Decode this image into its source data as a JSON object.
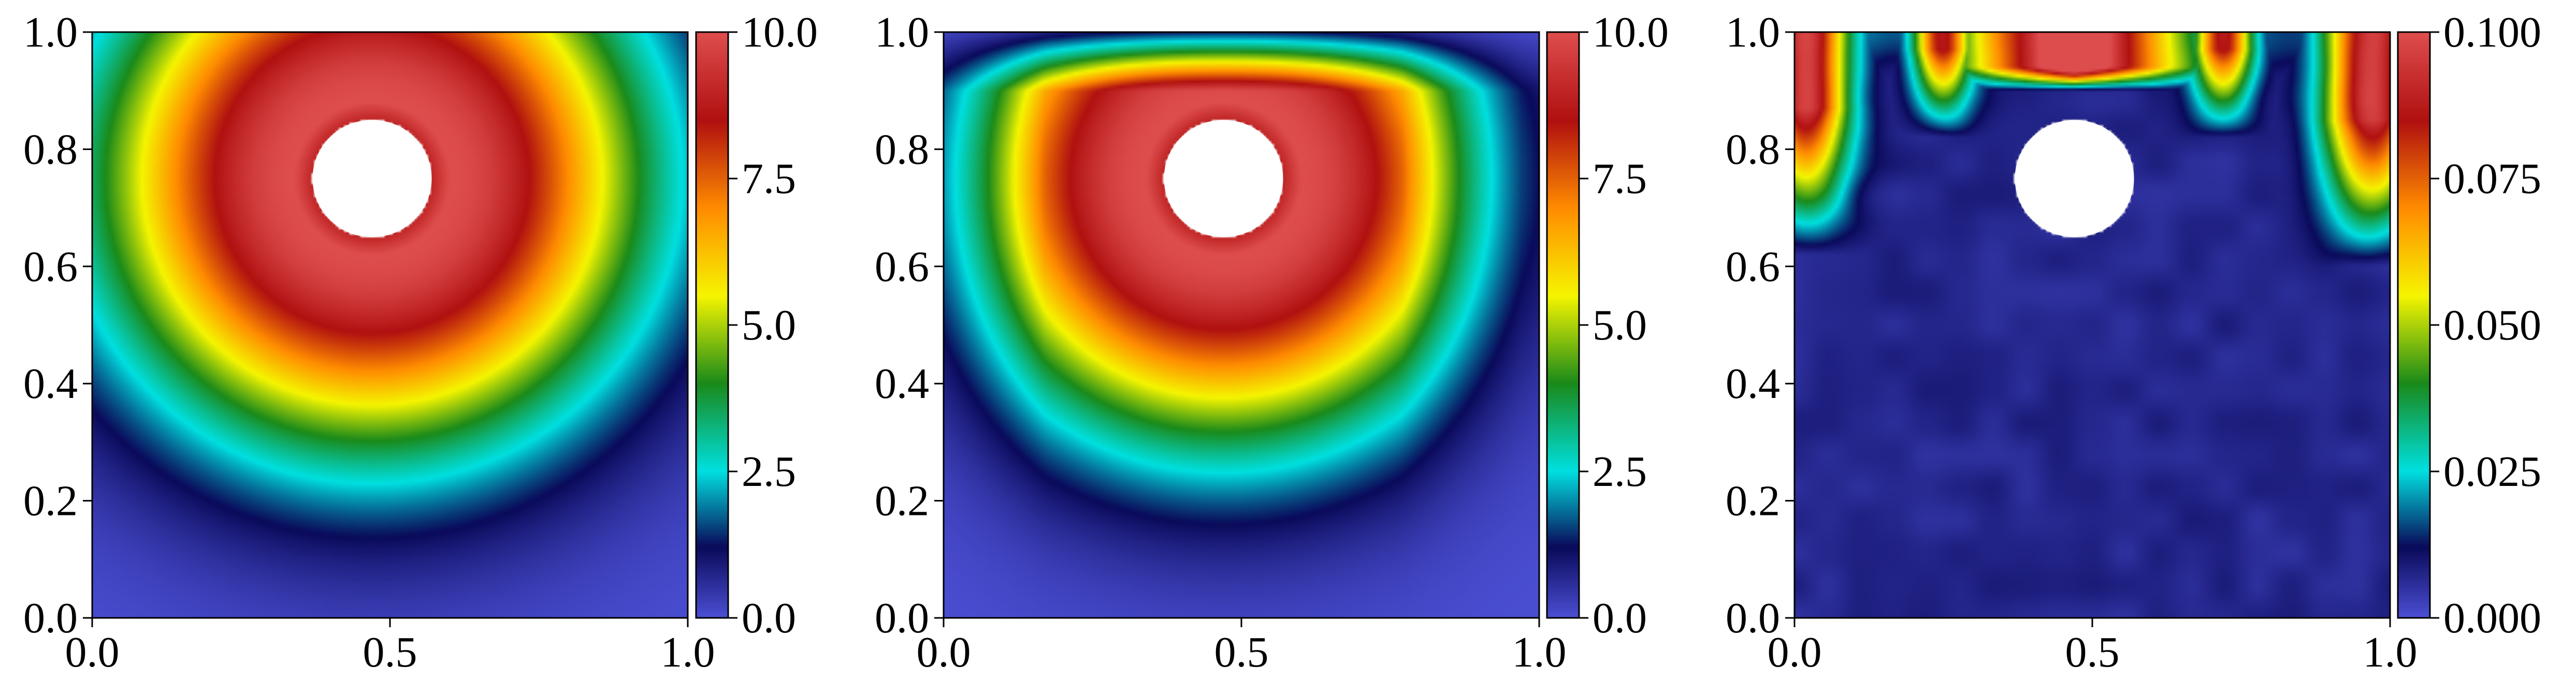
{
  "chart_data": [
    {
      "type": "heatmap",
      "panel": "left",
      "field": "ring",
      "center": [
        0.47,
        0.75
      ],
      "hole_radius": 0.1,
      "peak_radius": 0.13,
      "decay_width": 0.42,
      "top_fade": 0,
      "xlim": [
        0.0,
        1.0
      ],
      "ylim": [
        0.0,
        1.0
      ],
      "x_ticks": [
        "0.0",
        "0.5",
        "1.0"
      ],
      "y_ticks": [
        "0.0",
        "0.2",
        "0.4",
        "0.6",
        "0.8",
        "1.0"
      ],
      "colorbar": {
        "range": [
          0.0,
          10.0
        ],
        "ticks": [
          "0.0",
          "2.5",
          "5.0",
          "7.5",
          "10.0"
        ]
      }
    },
    {
      "type": "heatmap",
      "panel": "middle",
      "field": "ring",
      "center": [
        0.47,
        0.75
      ],
      "hole_radius": 0.1,
      "peak_radius": 0.13,
      "decay_width": 0.4,
      "top_fade": 1,
      "xlim": [
        0.0,
        1.0
      ],
      "ylim": [
        0.0,
        1.0
      ],
      "x_ticks": [
        "0.0",
        "0.5",
        "1.0"
      ],
      "y_ticks": [
        "0.0",
        "0.2",
        "0.4",
        "0.6",
        "0.8",
        "1.0"
      ],
      "colorbar": {
        "range": [
          0.0,
          10.0
        ],
        "ticks": [
          "0.0",
          "2.5",
          "5.0",
          "7.5",
          "10.0"
        ]
      }
    },
    {
      "type": "heatmap",
      "panel": "right",
      "field": "error",
      "center": [
        0.47,
        0.75
      ],
      "hole_radius": 0.1,
      "xlim": [
        0.0,
        1.0
      ],
      "ylim": [
        0.0,
        1.0
      ],
      "x_ticks": [
        "0.0",
        "0.5",
        "1.0"
      ],
      "y_ticks": [
        "0.0",
        "0.2",
        "0.4",
        "0.6",
        "0.8",
        "1.0"
      ],
      "colorbar": {
        "range": [
          0.0,
          0.1
        ],
        "ticks": [
          "0.000",
          "0.025",
          "0.050",
          "0.075",
          "0.100"
        ]
      }
    }
  ],
  "colormap": {
    "name": "jet-like",
    "stops": [
      [
        0.0,
        "#4a4ed2"
      ],
      [
        0.12,
        "#0a0a5a"
      ],
      [
        0.25,
        "#00e0e0"
      ],
      [
        0.4,
        "#1a8a1a"
      ],
      [
        0.55,
        "#f5f500"
      ],
      [
        0.7,
        "#ff8c00"
      ],
      [
        0.85,
        "#b01010"
      ],
      [
        1.0,
        "#de4d4d"
      ]
    ]
  }
}
